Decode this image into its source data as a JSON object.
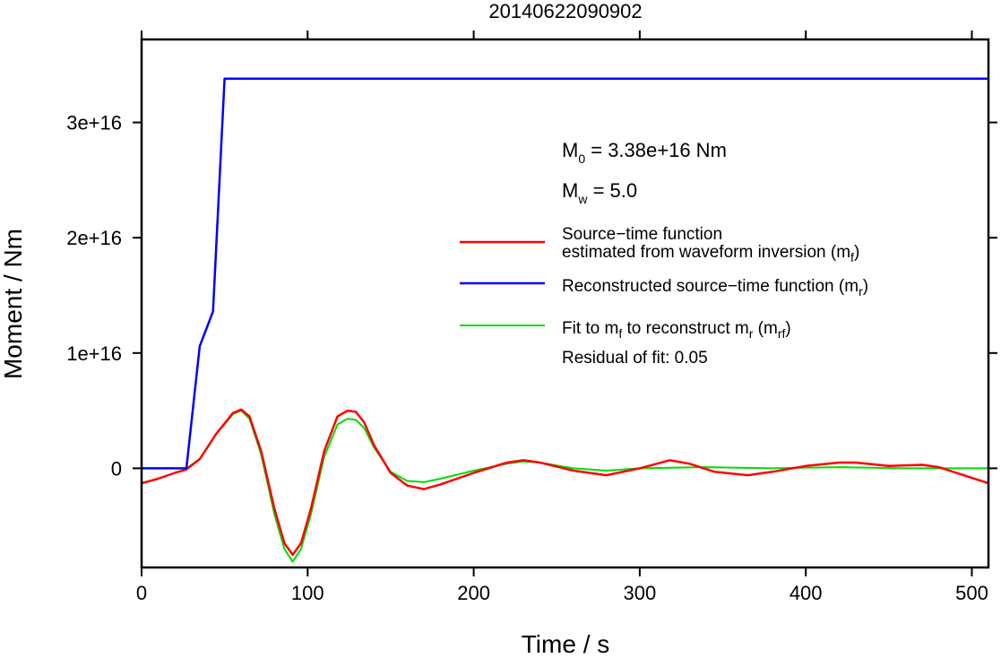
{
  "chart_data": {
    "type": "line",
    "title": "20140622090902",
    "xlabel": "Time / s",
    "ylabel": "Moment / Nm",
    "xlim": [
      0,
      510
    ],
    "ylim": [
      -8600000000000000.0,
      3.72e+16
    ],
    "xticks": [
      0,
      100,
      200,
      300,
      400,
      500
    ],
    "xtick_labels": [
      "0",
      "100",
      "200",
      "300",
      "400",
      "500"
    ],
    "yticks": [
      0,
      1e+16,
      2e+16,
      3e+16
    ],
    "ytick_labels": [
      "0",
      "1e+16",
      "2e+16",
      "3e+16"
    ],
    "grid": false,
    "legend_position": "right",
    "annotations": {
      "m0_main": "M",
      "m0_sub": "0",
      "m0_rest": " = 3.38e+16 Nm",
      "mw_main": "M",
      "mw_sub": "w",
      "mw_rest": " = 5.0",
      "residual": "Residual of fit: 0.05"
    },
    "legend": {
      "red_line1": "Source−time function",
      "red_line2_main": "estimated from waveform inversion (m",
      "red_line2_sub": "f",
      "red_line2_end": ")",
      "blue_main": "Reconstructed source−time function (m",
      "blue_sub": "r",
      "blue_end": ")",
      "green_a": "Fit to m",
      "green_sub1": "f",
      "green_b": " to reconstruct m",
      "green_sub2": "r",
      "green_c": " (m",
      "green_sub3": "rf",
      "green_d": ")"
    },
    "series": [
      {
        "color": "#ff0000",
        "x": [
          0,
          10,
          20,
          27,
          35,
          45,
          55,
          60,
          65,
          72,
          80,
          86,
          91,
          96,
          102,
          110,
          118,
          124,
          129,
          134,
          140,
          150,
          160,
          170,
          180,
          200,
          220,
          230,
          240,
          260,
          280,
          300,
          318,
          330,
          345,
          365,
          380,
          400,
          420,
          430,
          450,
          470,
          480,
          495,
          510
        ],
        "y": [
          -1300000000000000.0,
          -900000000000000.0,
          -400000000000000.0,
          -100000000000000.0,
          800000000000000.0,
          3000000000000000.0,
          4800000000000000.0,
          5100000000000000.0,
          4500000000000000.0,
          1500000000000000.0,
          -3500000000000000.0,
          -6500000000000000.0,
          -7500000000000000.0,
          -6500000000000000.0,
          -3500000000000000.0,
          1500000000000000.0,
          4500000000000000.0,
          5000000000000000.0,
          4900000000000000.0,
          4000000000000000.0,
          2000000000000000.0,
          -400000000000000.0,
          -1500000000000000.0,
          -1800000000000000.0,
          -1400000000000000.0,
          -400000000000000.0,
          500000000000000.0,
          700000000000000.0,
          500000000000000.0,
          -200000000000000.0,
          -600000000000000.0,
          0,
          700000000000000.0,
          400000000000000.0,
          -300000000000000.0,
          -600000000000000.0,
          -300000000000000.0,
          200000000000000.0,
          500000000000000.0,
          500000000000000.0,
          200000000000000.0,
          300000000000000.0,
          100000000000000.0,
          -600000000000000.0,
          -1300000000000000.0
        ]
      },
      {
        "color": "#0000ff",
        "x": [
          0,
          27,
          35,
          43,
          50,
          510
        ],
        "y": [
          0,
          0,
          1.06e+16,
          1.36e+16,
          3.38e+16,
          3.38e+16
        ]
      },
      {
        "color": "#00dd00",
        "x": [
          27,
          35,
          45,
          55,
          60,
          65,
          72,
          80,
          86,
          91,
          96,
          102,
          110,
          118,
          124,
          129,
          134,
          140,
          150,
          160,
          170,
          180,
          200,
          220,
          230,
          240,
          260,
          280,
          300,
          340,
          380,
          420,
          460,
          510
        ],
        "y": [
          0,
          800000000000000.0,
          3000000000000000.0,
          4700000000000000.0,
          5000000000000000.0,
          4300000000000000.0,
          1200000000000000.0,
          -4000000000000000.0,
          -7000000000000000.0,
          -8100000000000000.0,
          -7000000000000000.0,
          -4000000000000000.0,
          1000000000000000.0,
          3800000000000000.0,
          4300000000000000.0,
          4200000000000000.0,
          3500000000000000.0,
          1800000000000000.0,
          -300000000000000.0,
          -1100000000000000.0,
          -1200000000000000.0,
          -900000000000000.0,
          -200000000000000.0,
          400000000000000.0,
          600000000000000.0,
          500000000000000.0,
          0,
          -200000000000000.0,
          0,
          100000000000000.0,
          0,
          100000000000000.0,
          0,
          0
        ]
      }
    ]
  }
}
